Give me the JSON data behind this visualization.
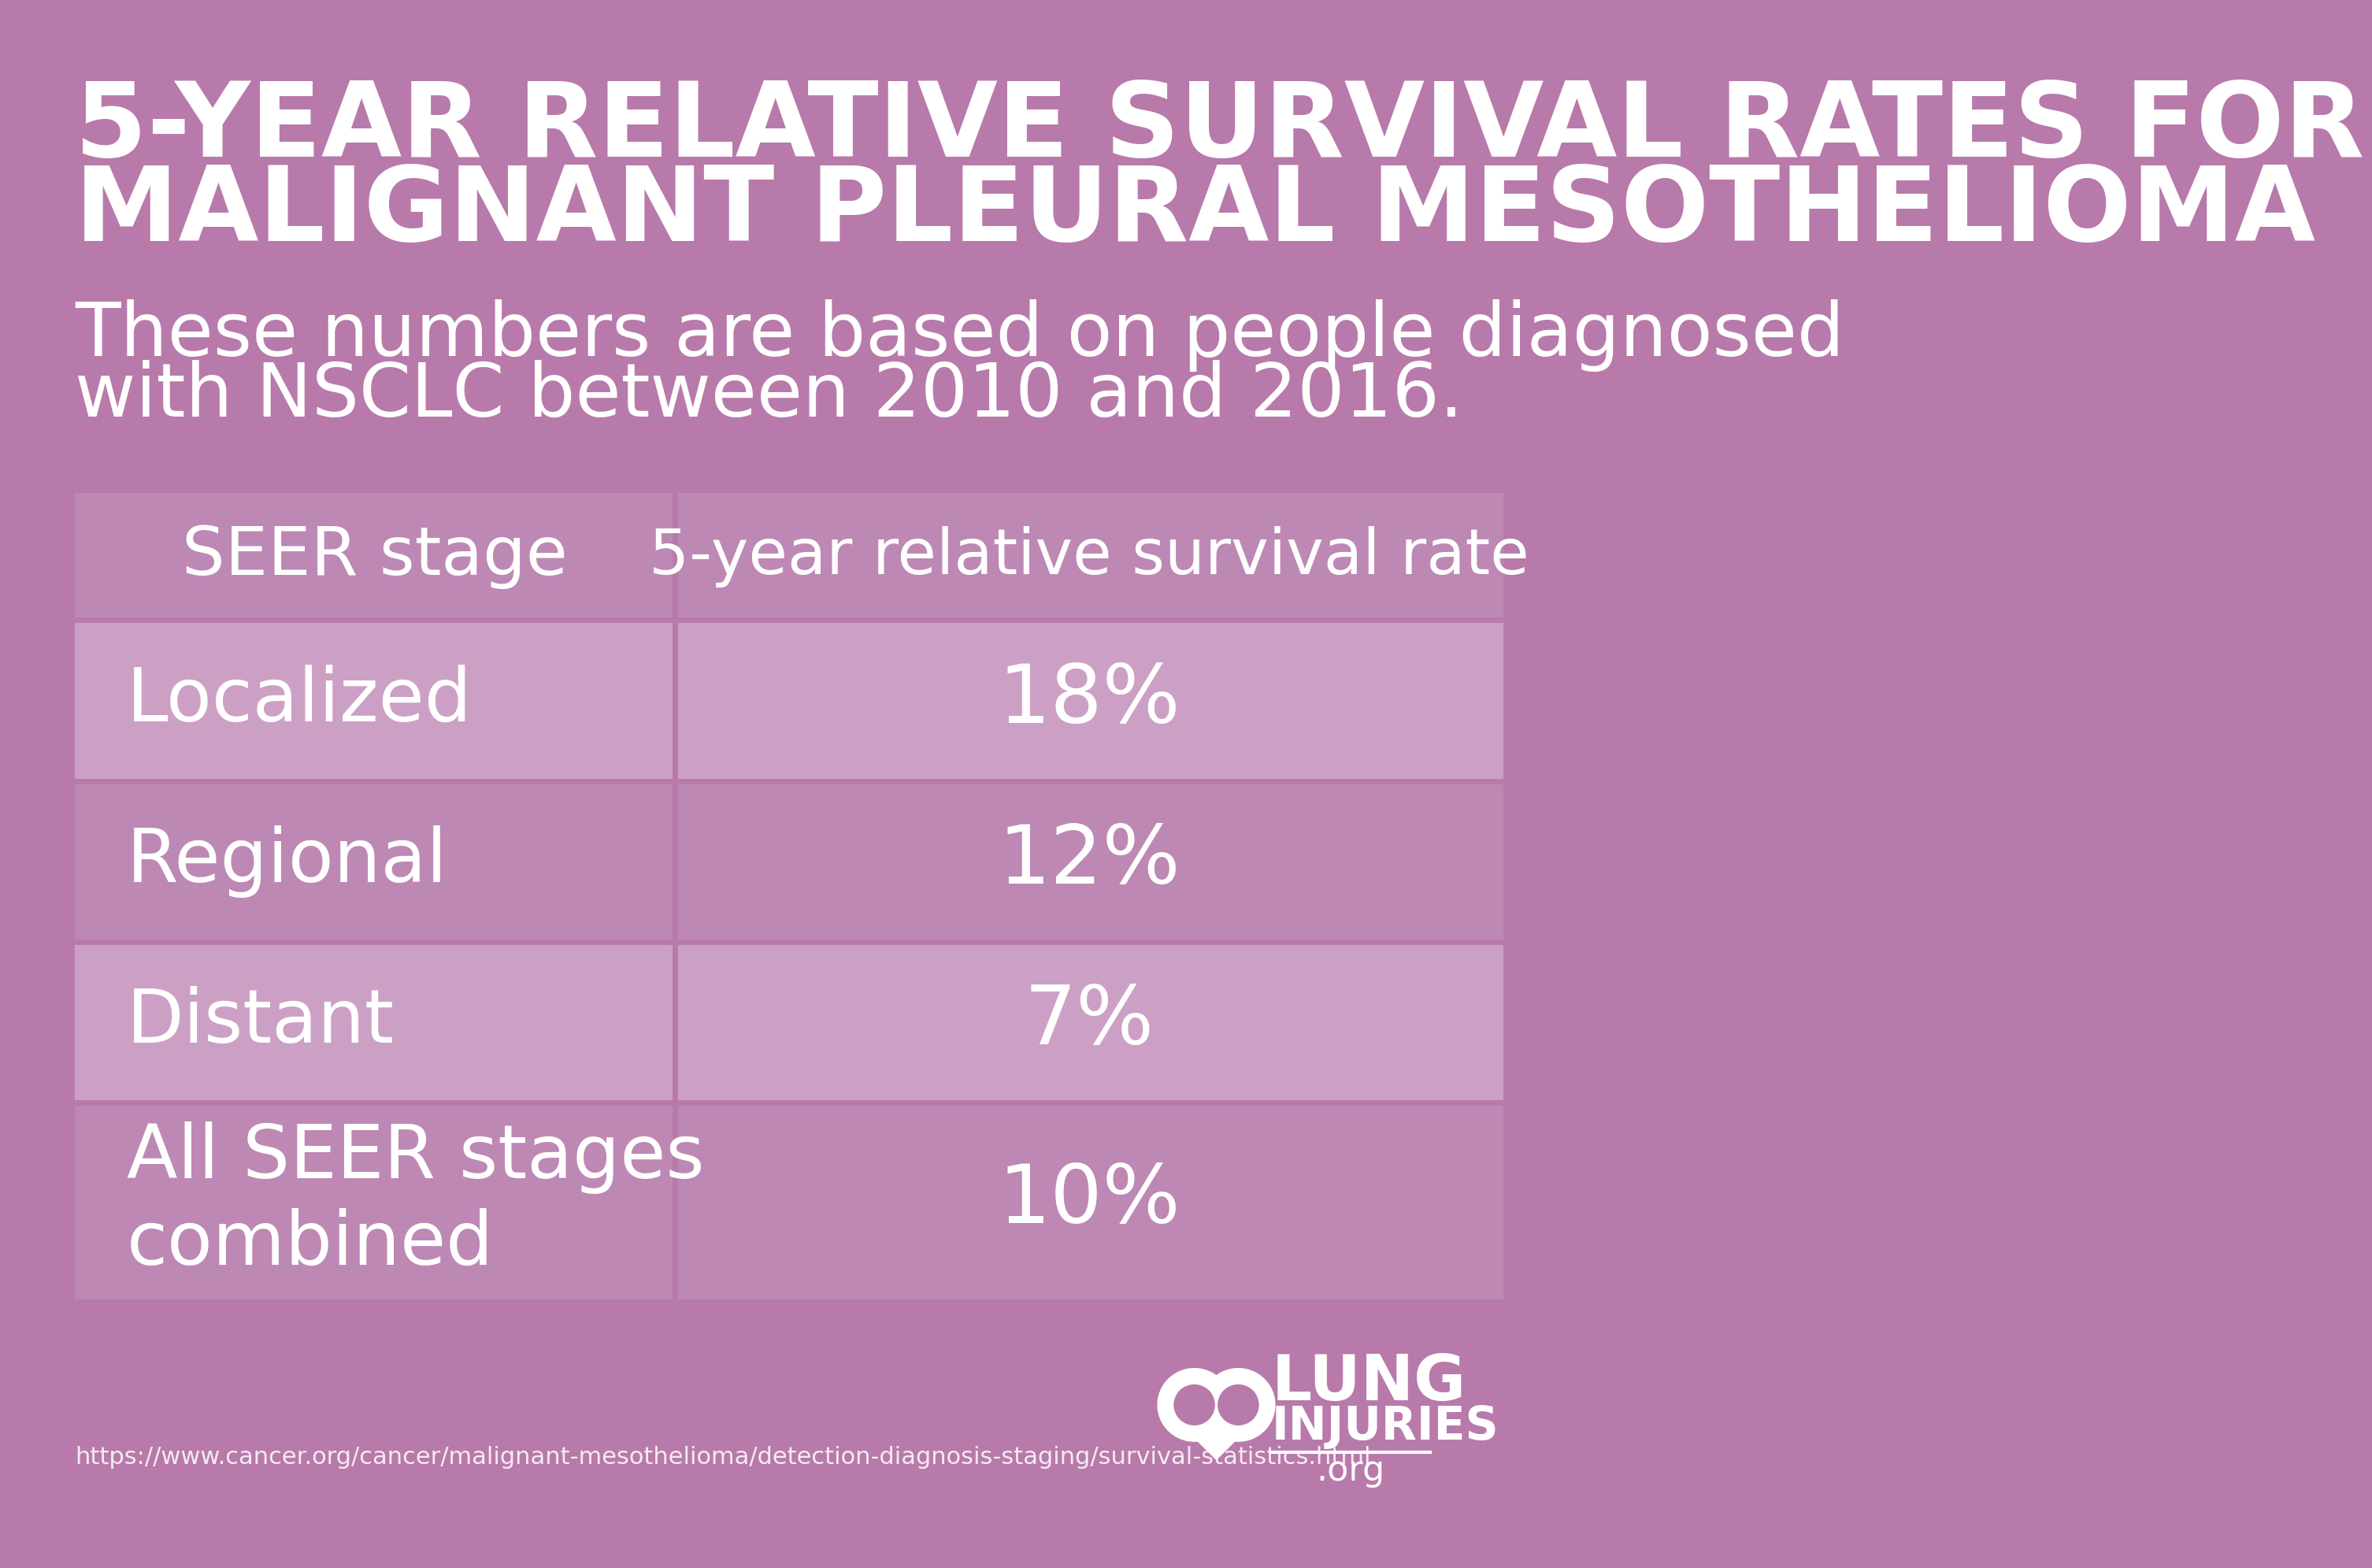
{
  "bg_color": "#b87aaa",
  "table_outer_bg": "#c090b8",
  "table_row_light": "#cca0c4",
  "table_row_dark": "#bd88b4",
  "text_color": "#ffffff",
  "title_line1": "5-YEAR RELATIVE SURVIVAL RATES FOR",
  "title_line2": "MALIGNANT PLEURAL MESOTHELIOMA",
  "subtitle_line1": "These numbers are based on people diagnosed",
  "subtitle_line2": "with NSCLC between 2010 and 2016.",
  "col1_header": "SEER stage",
  "col2_header": "5-year relative survival rate",
  "rows": [
    [
      "Localized",
      "18%"
    ],
    [
      "Regional",
      "12%"
    ],
    [
      "Distant",
      "7%"
    ],
    [
      "All SEER stages\ncombined",
      "10%"
    ]
  ],
  "footer_url": "https://www.cancer.org/cancer/malignant-mesothelioma/detection-diagnosis-staging/survival-statistics.html",
  "logo_text_line1": "LUNG",
  "logo_text_line2": "INJURIES",
  "logo_text_line3": ".org"
}
